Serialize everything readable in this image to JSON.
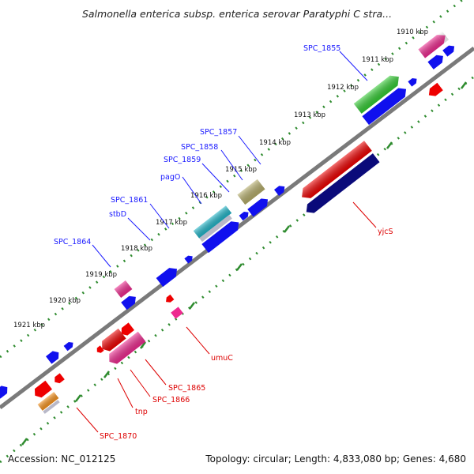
{
  "title": "Salmonella enterica subsp. enterica serovar Paratyphi C stra...",
  "footer": {
    "accession": "Accession: NC_012125",
    "summary": "Topology: circular; Length: 4,833,080 bp; Genes: 4,680"
  },
  "colors": {
    "backbone": "#7a7a7a",
    "dots": "#2e8b2e",
    "label_blue": "#1a1aff",
    "label_red": "#dd0000",
    "blue_gene": "#1010ee",
    "navy_gene": "#0a0a7a",
    "red_gene": "#ee0000",
    "green_gene": "#33cc33",
    "pink_gene": "#ee2a8f",
    "olive_gene": "#b5ad6a",
    "cyan_gene": "#20b5c8",
    "orange_gene": "#f7931e"
  },
  "kbp_ticks": [
    "1910 kbp",
    "1911 kbp",
    "1912 kbp",
    "1913 kbp",
    "1914 kbp",
    "1915 kbp",
    "1916 kbp",
    "1917 kbp",
    "1918 kbp",
    "1919 kbp",
    "1920 kbp",
    "1921 kbp"
  ],
  "labels_top": [
    "SPC_1855",
    "SPC_1857",
    "SPC_1858",
    "SPC_1859",
    "pagO",
    "SPC_1861",
    "stbD",
    "SPC_1864"
  ],
  "labels_bottom": [
    "yjcS",
    "umuC",
    "SPC_1865",
    "SPC_1866",
    "tnp",
    "SPC_1870"
  ]
}
